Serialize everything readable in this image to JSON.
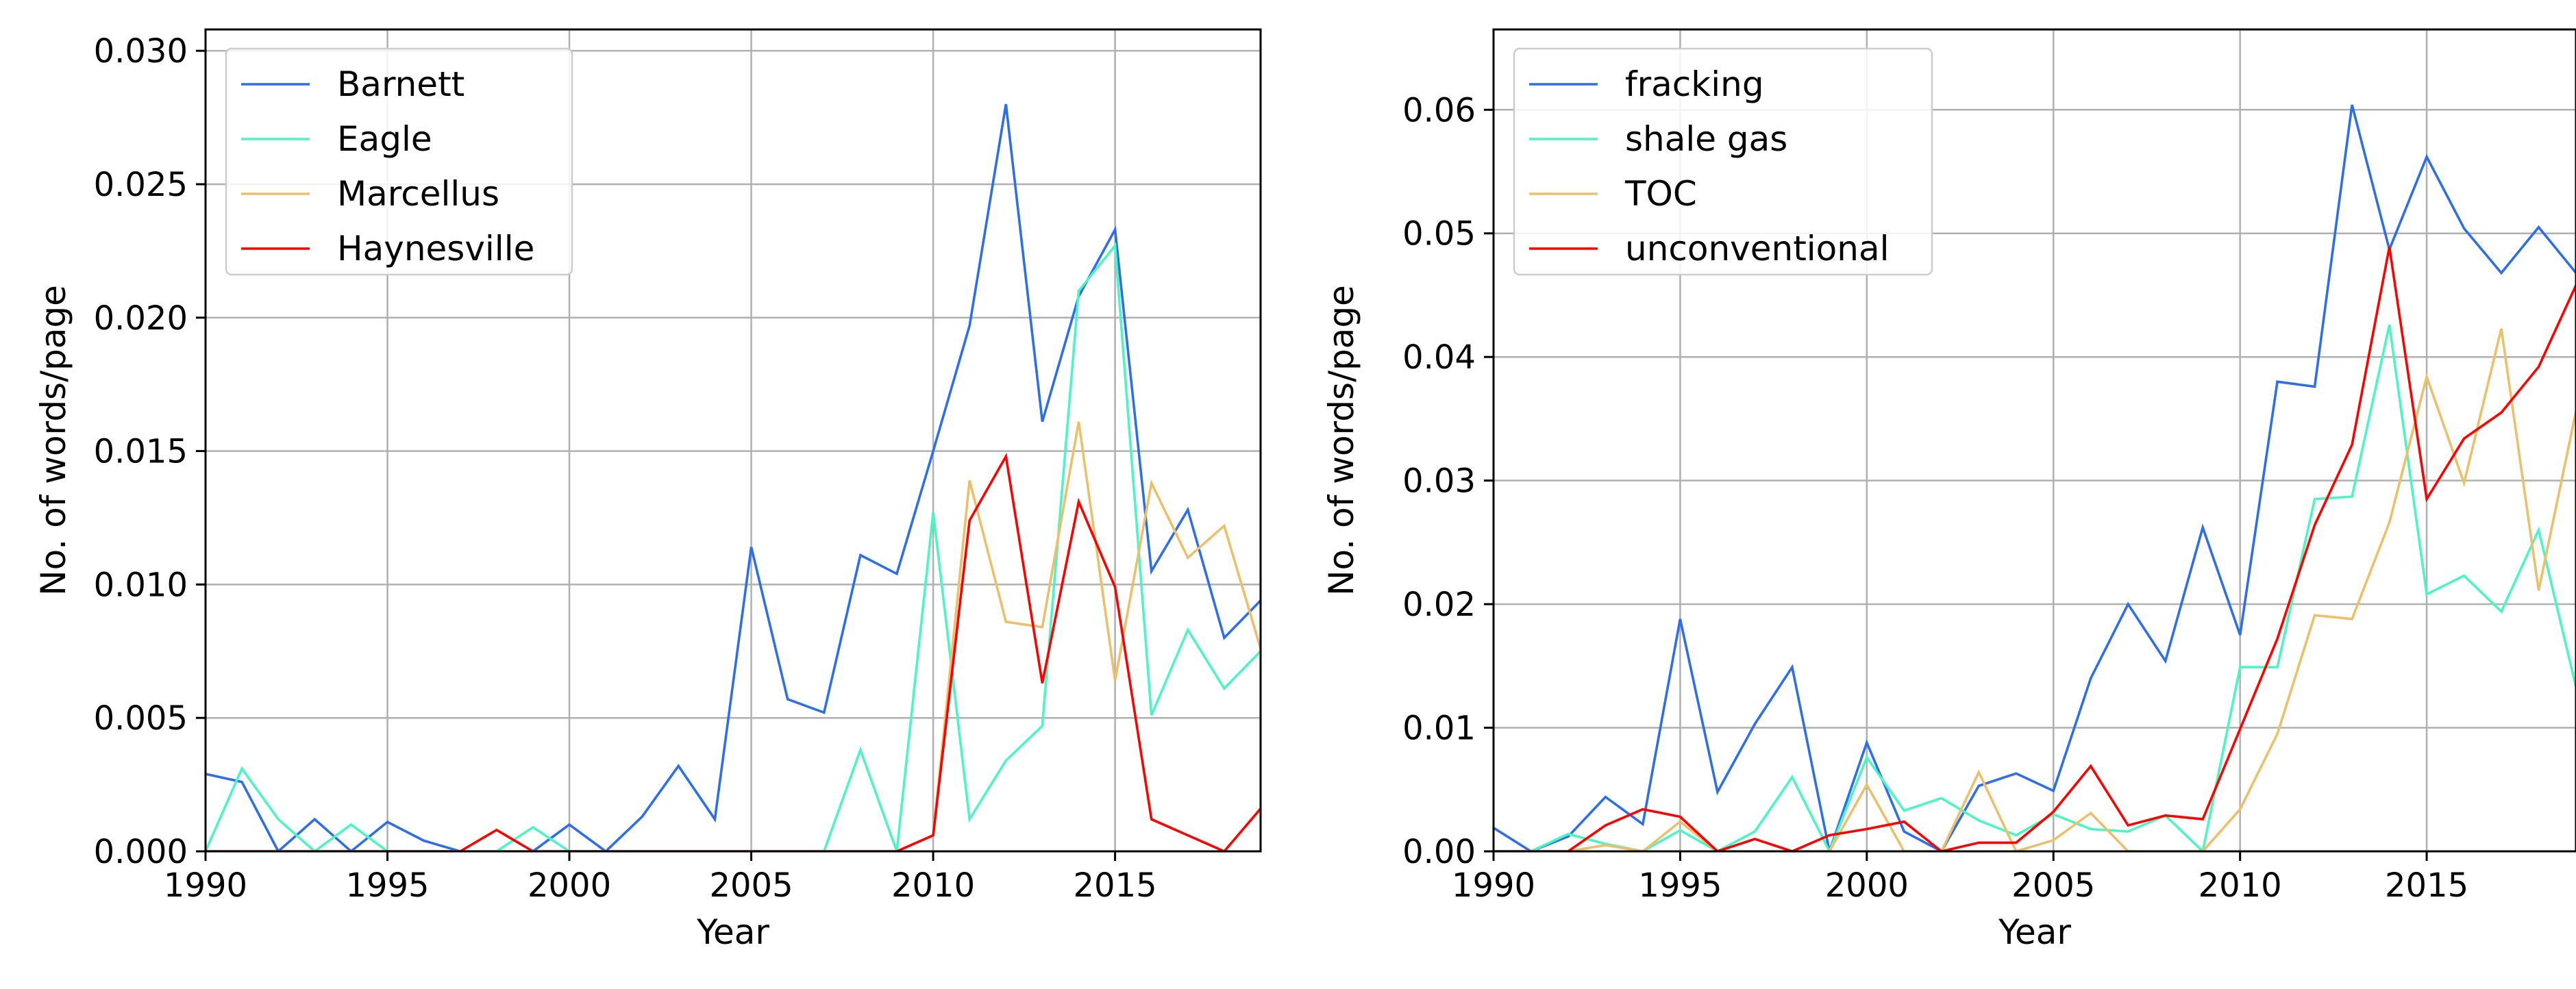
{
  "chart_data": [
    {
      "type": "line",
      "title": "",
      "xlabel": "Year",
      "ylabel": "No. of words/page",
      "xlim": [
        1990,
        2019
      ],
      "ylim": [
        0,
        0.0308
      ],
      "xticks": [
        "1990",
        "1995",
        "2000",
        "2005",
        "2010",
        "2015"
      ],
      "xtick_values": [
        1990,
        1995,
        2000,
        2005,
        2010,
        2015
      ],
      "yticks": [
        "0.000",
        "0.005",
        "0.010",
        "0.015",
        "0.020",
        "0.025",
        "0.030"
      ],
      "ytick_values": [
        0,
        0.005,
        0.01,
        0.015,
        0.02,
        0.025,
        0.03
      ],
      "grid": true,
      "legend_position": "upper-left",
      "x": [
        1990,
        1991,
        1992,
        1993,
        1994,
        1995,
        1996,
        1997,
        1998,
        1999,
        2000,
        2001,
        2002,
        2003,
        2004,
        2005,
        2006,
        2007,
        2008,
        2009,
        2010,
        2011,
        2012,
        2013,
        2014,
        2015,
        2016,
        2017,
        2018,
        2019
      ],
      "series": [
        {
          "name": "Barnett",
          "color": "#2e6ee6",
          "values": [
            0.0029,
            0.0026,
            0.0,
            0.0012,
            0.0,
            0.0011,
            0.0004,
            0.0,
            0.0,
            0.0,
            0.001,
            0.0,
            0.0013,
            0.0032,
            0.0012,
            0.0114,
            0.0057,
            0.0052,
            0.0111,
            0.0104,
            0.015,
            0.0197,
            0.028,
            0.0161,
            0.0208,
            0.0233,
            0.0105,
            0.0128,
            0.008,
            0.0094
          ]
        },
        {
          "name": "Eagle",
          "color": "#4df5c4",
          "values": [
            0.0,
            0.0031,
            0.0012,
            0.0,
            0.001,
            0.0,
            0.0,
            0.0,
            0.0,
            0.0009,
            0.0,
            0.0,
            0.0,
            0.0,
            0.0,
            0.0,
            0.0,
            0.0,
            0.0038,
            0.0,
            0.0127,
            0.0012,
            0.0034,
            0.0047,
            0.021,
            0.0227,
            0.0051,
            0.0083,
            0.0061,
            0.0075
          ]
        },
        {
          "name": "Marcellus",
          "color": "#ecc06b",
          "values": [
            0,
            0,
            0,
            0,
            0,
            0,
            0,
            0,
            0,
            0,
            0,
            0,
            0,
            0,
            0,
            0,
            0,
            0,
            0,
            0,
            0.0006,
            0.0139,
            0.0086,
            0.0084,
            0.0161,
            0.0064,
            0.0138,
            0.011,
            0.0122,
            0.0076
          ]
        },
        {
          "name": "Haynesville",
          "color": "#ff0000",
          "values": [
            0,
            0,
            0,
            0,
            0,
            0,
            0,
            0,
            0.0008,
            0,
            0,
            0,
            0,
            0,
            0,
            0,
            0,
            0,
            0,
            0,
            0.0006,
            0.0124,
            0.0148,
            0.0063,
            0.0131,
            0.0099,
            0.0012,
            0.0006,
            0.0,
            0.0016
          ]
        }
      ]
    },
    {
      "type": "line",
      "title": "",
      "xlabel": "Year",
      "ylabel": "No. of words/page",
      "xlim": [
        1990,
        2019
      ],
      "ylim": [
        0,
        0.0665
      ],
      "xticks": [
        "1990",
        "1995",
        "2000",
        "2005",
        "2010",
        "2015"
      ],
      "xtick_values": [
        1990,
        1995,
        2000,
        2005,
        2010,
        2015
      ],
      "yticks": [
        "0.00",
        "0.01",
        "0.02",
        "0.03",
        "0.04",
        "0.05",
        "0.06"
      ],
      "ytick_values": [
        0,
        0.01,
        0.02,
        0.03,
        0.04,
        0.05,
        0.06
      ],
      "grid": true,
      "legend_position": "upper-left",
      "x": [
        1990,
        1991,
        1992,
        1993,
        1994,
        1995,
        1996,
        1997,
        1998,
        1999,
        2000,
        2001,
        2002,
        2003,
        2004,
        2005,
        2006,
        2007,
        2008,
        2009,
        2010,
        2011,
        2012,
        2013,
        2014,
        2015,
        2016,
        2017,
        2018,
        2019
      ],
      "series": [
        {
          "name": "fracking",
          "color": "#2e6ee6",
          "values": [
            0.0019,
            0.0,
            0.0012,
            0.0044,
            0.0022,
            0.0188,
            0.0048,
            0.0103,
            0.0149,
            0.0,
            0.0088,
            0.0016,
            0.0,
            0.0053,
            0.0063,
            0.0049,
            0.014,
            0.02,
            0.0154,
            0.0262,
            0.0175,
            0.038,
            0.0376,
            0.0604,
            0.0487,
            0.0562,
            0.0504,
            0.0468,
            0.0505,
            0.0468
          ]
        },
        {
          "name": "shale gas",
          "color": "#4df5c4",
          "values": [
            0.0,
            0.0,
            0.0014,
            0.0006,
            0.0,
            0.0017,
            0.0,
            0.0016,
            0.006,
            0.0,
            0.0076,
            0.0033,
            0.0043,
            0.0025,
            0.0013,
            0.003,
            0.0018,
            0.0016,
            0.0029,
            0.0,
            0.0149,
            0.0149,
            0.0285,
            0.0287,
            0.0426,
            0.0208,
            0.0223,
            0.0194,
            0.026,
            0.0133
          ]
        },
        {
          "name": "TOC",
          "color": "#ecc06b",
          "values": [
            0.0,
            0.0,
            0.0,
            0.0005,
            0.0,
            0.0024,
            0.0,
            0.0,
            0.0,
            0.0,
            0.0054,
            0.0,
            0.0,
            0.0064,
            0.0,
            0.0009,
            0.0031,
            0.0,
            0.0,
            0.0,
            0.0034,
            0.0095,
            0.0191,
            0.0188,
            0.0266,
            0.0384,
            0.0298,
            0.0423,
            0.0211,
            0.0356
          ]
        },
        {
          "name": "unconventional",
          "color": "#ff0000",
          "values": [
            0.0,
            0.0,
            0.0,
            0.0021,
            0.0034,
            0.0028,
            0.0,
            0.001,
            0.0,
            0.0013,
            0.0018,
            0.0024,
            0.0,
            0.0007,
            0.0007,
            0.0032,
            0.0069,
            0.0021,
            0.0029,
            0.0026,
            0.0099,
            0.0172,
            0.0264,
            0.0329,
            0.0489,
            0.0285,
            0.0334,
            0.0355,
            0.0392,
            0.0458
          ]
        }
      ]
    }
  ]
}
